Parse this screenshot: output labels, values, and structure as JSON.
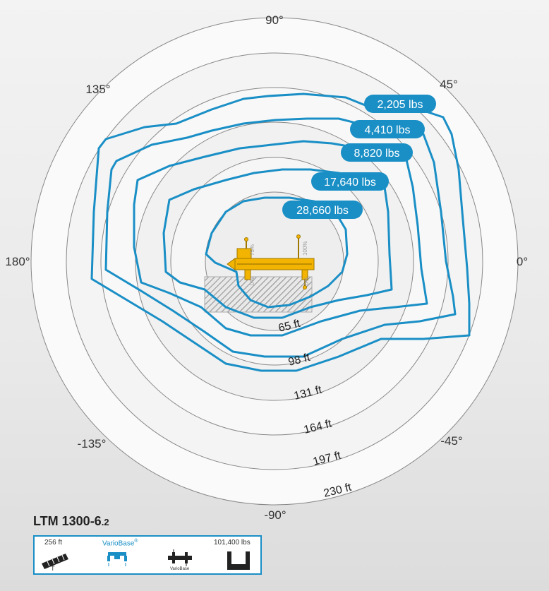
{
  "chart_data": {
    "type": "polar-load-chart",
    "title": "",
    "angle_labels": [
      "90°",
      "45°",
      "0°",
      "-45°",
      "-90°",
      "-135°",
      "180°",
      "135°"
    ],
    "radius_unit": "ft",
    "radius_labels": [
      {
        "label": "65 ft",
        "value": 65
      },
      {
        "label": "98 ft",
        "value": 98
      },
      {
        "label": "131 ft",
        "value": 131
      },
      {
        "label": "164 ft",
        "value": 164
      },
      {
        "label": "197 ft",
        "value": 197
      },
      {
        "label": "230 ft",
        "value": 230
      }
    ],
    "series": [
      {
        "name": "2,205 lbs"
      },
      {
        "name": "4,410 lbs"
      },
      {
        "name": "8,820 lbs"
      },
      {
        "name": "17,640 lbs"
      },
      {
        "name": "28,660 lbs"
      }
    ],
    "outrigger_percent_labels": [
      "75%",
      "100%",
      "0%",
      "0%"
    ]
  },
  "model": {
    "name": "LTM 1300-6",
    "suffix": ".2"
  },
  "specs": {
    "boom_length": "256 ft",
    "boom_icon_label": "T",
    "variobase_label": "VarioBase",
    "variobase_mark": "®",
    "variobase_small": "VarioBase",
    "counterweight": "101,400 lbs"
  },
  "colors": {
    "accent": "#1a8fc6",
    "crane": "#f2b400",
    "grid": "#888888"
  }
}
